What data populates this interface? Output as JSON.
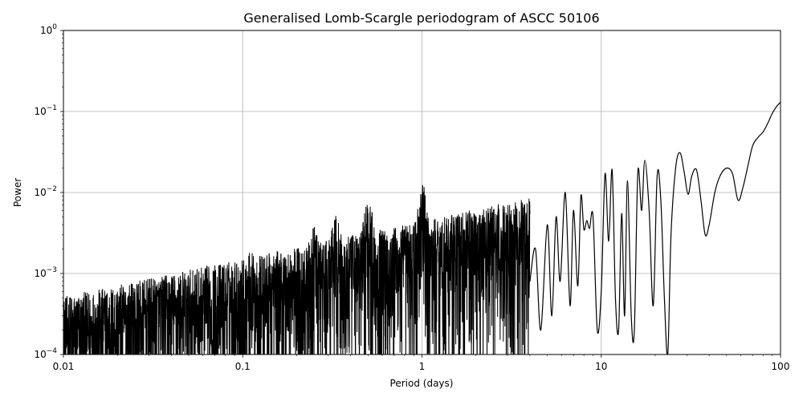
{
  "chart_data": {
    "type": "line",
    "title": "Generalised Lomb-Scargle periodogram of ASCC 50106",
    "xlabel": "Period (days)",
    "ylabel": "Power",
    "xscale": "log",
    "yscale": "log",
    "xlim": [
      0.01,
      100
    ],
    "ylim": [
      0.0001,
      1
    ],
    "grid": true,
    "line_color": "#000000",
    "x_ticks": [
      {
        "value": 0.01,
        "label": "0.01"
      },
      {
        "value": 0.1,
        "label": "0.1"
      },
      {
        "value": 1,
        "label": "1"
      },
      {
        "value": 10,
        "label": "10"
      },
      {
        "value": 100,
        "label": "100"
      }
    ],
    "y_ticks": [
      {
        "value": 0.0001,
        "base": "10",
        "exp": "−4"
      },
      {
        "value": 0.001,
        "base": "10",
        "exp": "−3"
      },
      {
        "value": 0.01,
        "base": "10",
        "exp": "−2"
      },
      {
        "value": 0.1,
        "base": "10",
        "exp": "−1"
      },
      {
        "value": 1,
        "base": "10",
        "exp": "0"
      }
    ],
    "series": [
      {
        "x": [
          4.0,
          4.3,
          4.6,
          5.0,
          5.3,
          5.6,
          5.9,
          6.3,
          6.7,
          7.0,
          7.4,
          7.7,
          8.0,
          8.3,
          8.6,
          9.0,
          9.5,
          10.0,
          10.5,
          11.0,
          11.5,
          12.0,
          12.5,
          13.0,
          13.5,
          14.0,
          14.7,
          15.3,
          16.0,
          16.8,
          17.5,
          18.5,
          19.5,
          20.5,
          21.5,
          22.5,
          23.5,
          24.5,
          26.0,
          27.5,
          29.0,
          30.5,
          32.0,
          34.0,
          36.0,
          38.0,
          40.0,
          43.0,
          46.0,
          50.0,
          54.0,
          58.0,
          62.0,
          66.0,
          70.0,
          75.0,
          80.0,
          85.0,
          90.0,
          95.0,
          100.0
        ],
        "y": [
          0.0008,
          0.002,
          0.0002,
          0.004,
          0.0003,
          0.005,
          0.0008,
          0.01,
          0.0004,
          0.006,
          0.0007,
          0.009,
          0.0035,
          0.0045,
          0.0036,
          0.005,
          0.0002,
          0.0006,
          0.017,
          0.0025,
          0.019,
          0.0005,
          0.0002,
          0.0055,
          0.0003,
          0.014,
          0.0003,
          0.0002,
          0.018,
          0.006,
          0.025,
          0.006,
          0.0004,
          0.016,
          0.008,
          0.0005,
          0.0001,
          0.003,
          0.02,
          0.031,
          0.018,
          0.0095,
          0.016,
          0.019,
          0.008,
          0.003,
          0.004,
          0.01,
          0.016,
          0.02,
          0.017,
          0.008,
          0.012,
          0.022,
          0.038,
          0.048,
          0.056,
          0.072,
          0.095,
          0.115,
          0.13
        ]
      }
    ]
  }
}
